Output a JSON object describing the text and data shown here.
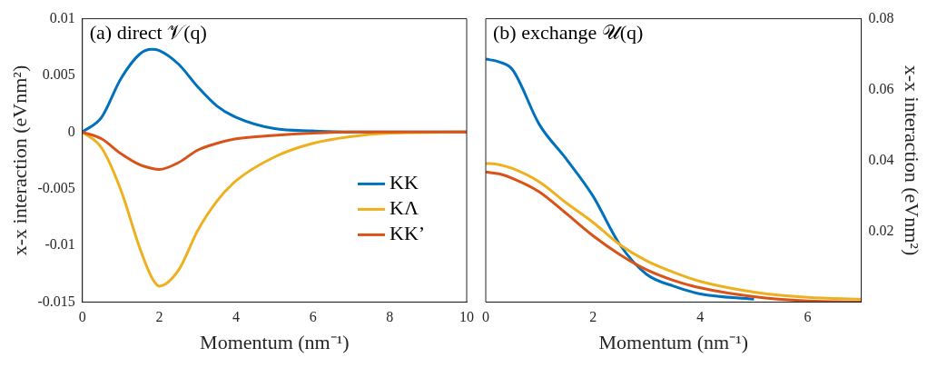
{
  "chart_data": [
    {
      "type": "line",
      "title": "(a) direct 𝒱(q)",
      "xlabel": "Momentum (nm⁻¹)",
      "ylabel": "x-x interaction (eVnm²)",
      "x": [
        0,
        0.5,
        1,
        1.5,
        1.8,
        2,
        2.5,
        3,
        3.5,
        4,
        5,
        6,
        7,
        8,
        10
      ],
      "series": [
        {
          "name": "KK",
          "color": "#0072bd",
          "values": [
            0,
            0.0013,
            0.0047,
            0.0069,
            0.0073,
            0.0072,
            0.006,
            0.004,
            0.0023,
            0.0013,
            0.0003,
            0.0001,
            0,
            0,
            0
          ]
        },
        {
          "name": "KΛ",
          "color": "#edb120",
          "values": [
            0,
            -0.0014,
            -0.0051,
            -0.0103,
            -0.0128,
            -0.0136,
            -0.0122,
            -0.0087,
            -0.0061,
            -0.0043,
            -0.0022,
            -0.001,
            -0.0004,
            -0.0001,
            0
          ]
        },
        {
          "name": "KK’",
          "color": "#d95319",
          "values": [
            0,
            -0.0006,
            -0.0019,
            -0.0029,
            -0.0032,
            -0.0033,
            -0.0027,
            -0.0016,
            -0.001,
            -0.0006,
            -0.0003,
            -0.0001,
            0,
            0,
            0
          ]
        }
      ],
      "xlim": [
        0,
        10
      ],
      "xticks": [
        0,
        2,
        4,
        6,
        8,
        10
      ],
      "ylim": [
        -0.015,
        0.01
      ],
      "yticks": [
        -0.015,
        -0.01,
        -0.005,
        0,
        0.005,
        0.01
      ],
      "legend": "bottom right",
      "grid": false
    },
    {
      "type": "line",
      "title": "(b) exchange 𝒰(q)",
      "xlabel": "Momentum (nm⁻¹)",
      "y2label": "x-x interaction (eVnm²)",
      "x": [
        0,
        0.25,
        0.5,
        1,
        1.5,
        2,
        2.5,
        3,
        3.5,
        4,
        5,
        6,
        7
      ],
      "series": [
        {
          "color": "#0072bd",
          "axis": "y2",
          "values": [
            0.0686,
            0.0678,
            0.0656,
            0.0501,
            0.0404,
            0.0299,
            0.0162,
            0.0078,
            0.0045,
            0.0023,
            0.0008,
            null,
            null
          ]
        },
        {
          "color": "#edb120",
          "axis": "y2",
          "values": [
            0.0392,
            0.0388,
            0.0377,
            0.0339,
            0.028,
            0.0225,
            0.0162,
            0.0116,
            0.0084,
            0.0058,
            0.0028,
            0.0013,
            0.0008
          ]
        },
        {
          "color": "#d95319",
          "axis": "y2",
          "values": [
            0.0367,
            0.0362,
            0.0349,
            0.0311,
            0.025,
            0.0187,
            0.0134,
            0.0091,
            0.0061,
            0.004,
            0.0015,
            0.0003,
            0
          ]
        }
      ],
      "xlim": [
        0,
        7
      ],
      "xticks": [
        0,
        2,
        4,
        6
      ],
      "y2lim": [
        0,
        0.08
      ],
      "y2ticks": [
        0.02,
        0.04,
        0.06,
        0.08
      ],
      "legend": false,
      "grid": false
    }
  ]
}
